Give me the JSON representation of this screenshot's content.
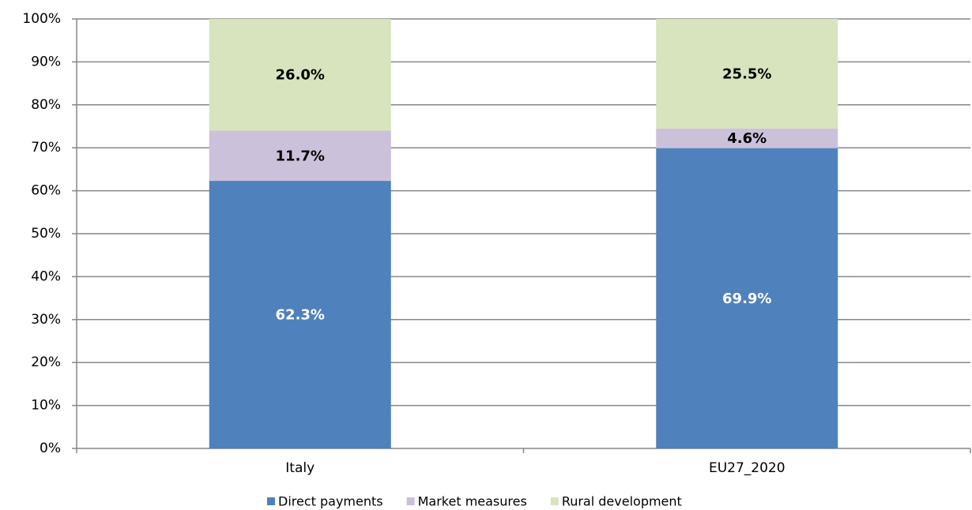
{
  "chart_data": {
    "type": "stacked_bar",
    "categories": [
      "Italy",
      "EU27_2020"
    ],
    "series": [
      {
        "name": "Direct payments",
        "color": "#4f81bd",
        "values": [
          62.3,
          69.9
        ],
        "value_labels": [
          "62.3%",
          "69.9%"
        ]
      },
      {
        "name": "Market measures",
        "color": "#ccc1da",
        "values": [
          11.7,
          4.6
        ],
        "value_labels": [
          "11.7%",
          "4.6%"
        ]
      },
      {
        "name": "Rural development",
        "color": "#d7e4bd",
        "values": [
          26.0,
          25.5
        ],
        "value_labels": [
          "26.0%",
          "25.5%"
        ]
      }
    ],
    "ylim": [
      0,
      100
    ],
    "yticks": [
      {
        "value": 0,
        "label": "0%"
      },
      {
        "value": 10,
        "label": "10%"
      },
      {
        "value": 20,
        "label": "20%"
      },
      {
        "value": 30,
        "label": "30%"
      },
      {
        "value": 40,
        "label": "40%"
      },
      {
        "value": 50,
        "label": "50%"
      },
      {
        "value": 60,
        "label": "60%"
      },
      {
        "value": 70,
        "label": "70%"
      },
      {
        "value": 80,
        "label": "80%"
      },
      {
        "value": 90,
        "label": "90%"
      },
      {
        "value": 100,
        "label": "100%"
      }
    ],
    "grid": true,
    "legend": "bottom"
  }
}
